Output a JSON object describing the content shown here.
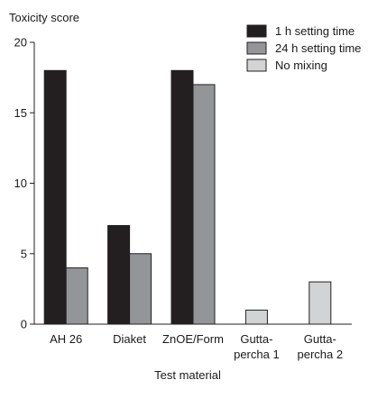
{
  "chart_data": {
    "type": "bar",
    "ylabel": "Toxicity score",
    "xlabel": "Test material",
    "ylim": [
      0,
      20
    ],
    "yticks": [
      0,
      5,
      10,
      15,
      20
    ],
    "categories": [
      [
        "AH 26"
      ],
      [
        "Diaket"
      ],
      [
        "ZnOE/Form"
      ],
      [
        "Gutta-",
        "percha 1"
      ],
      [
        "Gutta-",
        "percha 2"
      ]
    ],
    "category_labels": [
      "AH 26",
      "Diaket",
      "ZnOE/Form",
      "Gutta-percha 1",
      "Gutta-percha 2"
    ],
    "series": [
      {
        "name": "1 h setting time",
        "color": "#231f20",
        "values": [
          18,
          7,
          18,
          null,
          null
        ]
      },
      {
        "name": "24 h setting time",
        "color": "#939598",
        "values": [
          4,
          5,
          17,
          null,
          null
        ]
      },
      {
        "name": "No mixing",
        "color": "#d1d3d4",
        "values": [
          null,
          null,
          null,
          1,
          3
        ]
      }
    ],
    "legend_position": "top-right",
    "grid": false
  }
}
